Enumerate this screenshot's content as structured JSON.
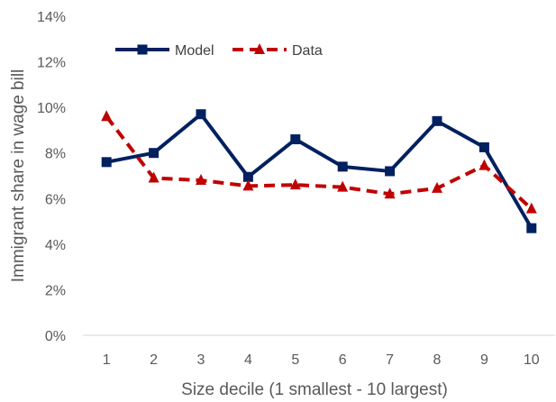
{
  "chart_data": {
    "type": "line",
    "title": "",
    "xlabel": "Size decile (1 smallest - 10 largest)",
    "ylabel": "Immigrant share in wage bill",
    "categories": [
      "1",
      "2",
      "3",
      "4",
      "5",
      "6",
      "7",
      "8",
      "9",
      "10"
    ],
    "yticks": [
      "0%",
      "2%",
      "4%",
      "6%",
      "8%",
      "10%",
      "12%",
      "14%"
    ],
    "ylim": [
      0,
      14
    ],
    "grid": false,
    "legend_position": "top-left",
    "series": [
      {
        "name": "Model",
        "color": "#002060",
        "marker": "square",
        "line_style": "solid",
        "values": [
          7.6,
          8.0,
          9.7,
          6.95,
          8.6,
          7.4,
          7.2,
          9.4,
          8.25,
          4.7
        ]
      },
      {
        "name": "Data",
        "color": "#C00000",
        "marker": "triangle",
        "line_style": "dashed",
        "values": [
          9.6,
          6.9,
          6.8,
          6.55,
          6.6,
          6.5,
          6.2,
          6.45,
          7.45,
          5.55
        ]
      }
    ]
  }
}
